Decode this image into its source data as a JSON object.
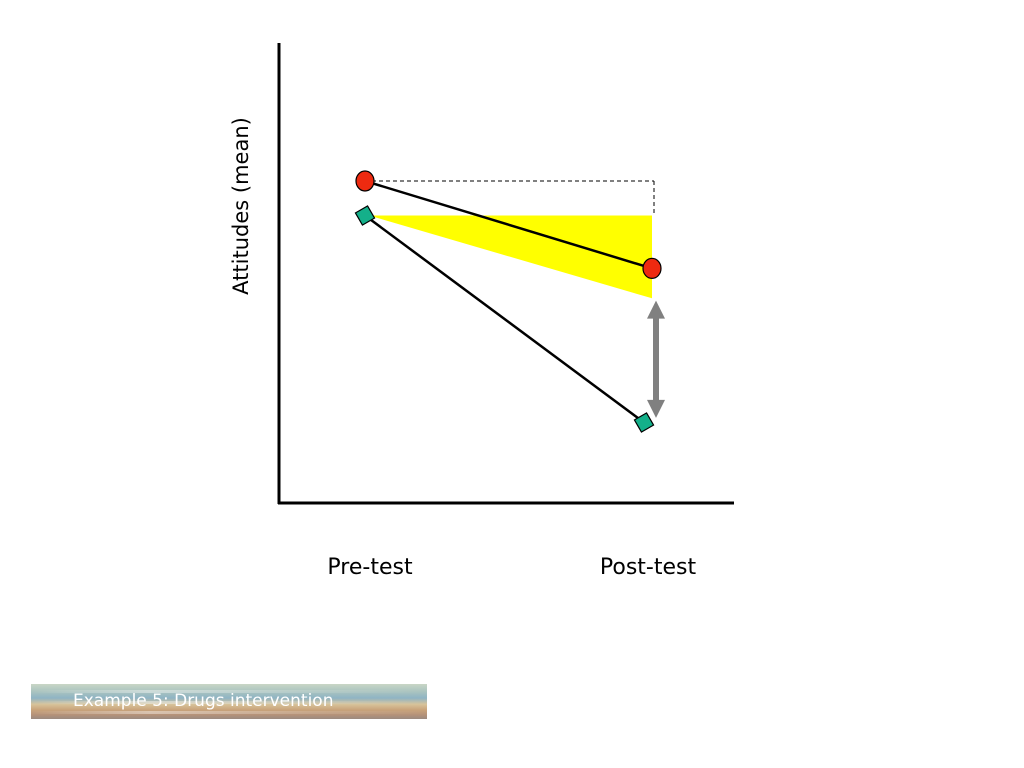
{
  "chart_data": {
    "type": "line",
    "categories": [
      "Pre-test",
      "Post-test"
    ],
    "ylabel": "Attitudes (mean)",
    "xlabel": "",
    "ylim": [
      0,
      10
    ],
    "grid": false,
    "series": [
      {
        "marker": "circle",
        "color": "#ee2a10",
        "values": [
          7.0,
          5.1
        ]
      },
      {
        "marker": "square",
        "color": "#14b08a",
        "values": [
          6.25,
          1.75
        ]
      }
    ],
    "annotations": {
      "baseline_reference_level": 7.0,
      "shaded_region": {
        "color": "#ffff00",
        "top": 6.25,
        "bottom": 4.45
      },
      "difference_arrow": {
        "color": "#808080",
        "from": 4.4,
        "to": 1.85
      }
    }
  },
  "caption": "Example 5: Drugs intervention"
}
